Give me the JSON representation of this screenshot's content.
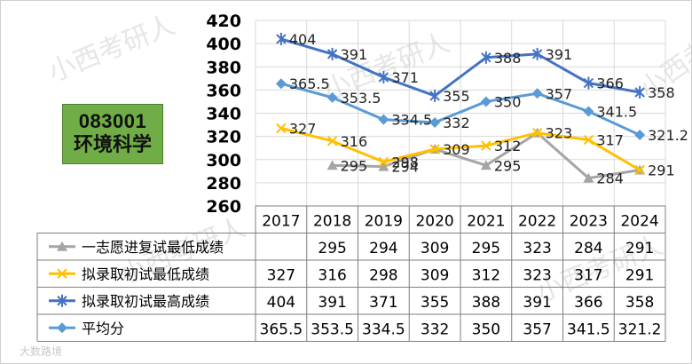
{
  "badge": {
    "code": "083001",
    "name": "环境科学"
  },
  "footer_watermark": "大数路境",
  "chart_data": {
    "type": "line",
    "x": [
      "2017",
      "2018",
      "2019",
      "2020",
      "2021",
      "2022",
      "2023",
      "2024"
    ],
    "ylim": [
      260,
      420
    ],
    "yticks": [
      260,
      280,
      300,
      320,
      340,
      360,
      380,
      400,
      420
    ],
    "grid": true,
    "legend_placement": "table-below",
    "series": [
      {
        "name": "一志愿进复试最低成绩",
        "values": [
          null,
          295,
          294,
          309,
          295,
          323,
          284,
          291
        ],
        "labels": [
          "",
          "295",
          "294",
          "",
          "295",
          "",
          "284",
          ""
        ],
        "table": [
          "",
          "295",
          "294",
          "309",
          "295",
          "323",
          "284",
          "291"
        ],
        "color": "#a5a5a5",
        "marker": "triangle"
      },
      {
        "name": "拟录取初试最低成绩",
        "values": [
          327,
          316,
          298,
          309,
          312,
          323,
          317,
          291
        ],
        "labels": [
          "327",
          "316",
          "298",
          "309",
          "312",
          "323",
          "317",
          "291"
        ],
        "table": [
          "327",
          "316",
          "298",
          "309",
          "312",
          "323",
          "317",
          "291"
        ],
        "color": "#ffc000",
        "marker": "x"
      },
      {
        "name": "拟录取初试最高成绩",
        "values": [
          404,
          391,
          371,
          355,
          388,
          391,
          366,
          358
        ],
        "labels": [
          "404",
          "391",
          "371",
          "355",
          "388",
          "391",
          "366",
          "358"
        ],
        "table": [
          "404",
          "391",
          "371",
          "355",
          "388",
          "391",
          "366",
          "358"
        ],
        "color": "#4472c4",
        "marker": "star"
      },
      {
        "name": "平均分",
        "values": [
          365.5,
          353.5,
          334.5,
          332,
          350,
          357,
          341.5,
          321.2
        ],
        "labels": [
          "365.5",
          "353.5",
          "334.5",
          "332",
          "350",
          "357",
          "341.5",
          "321.2"
        ],
        "table": [
          "365.5",
          "353.5",
          "334.5",
          "332",
          "350",
          "357",
          "341.5",
          "321.2"
        ],
        "color": "#5b9bd5",
        "marker": "diamond"
      }
    ]
  }
}
